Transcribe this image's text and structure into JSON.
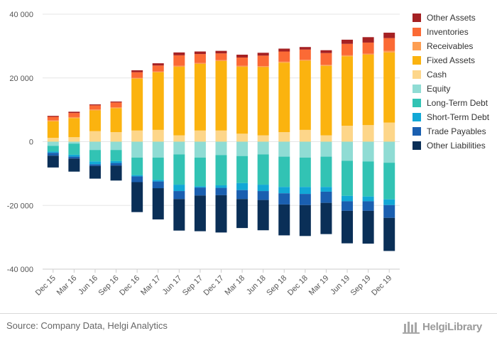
{
  "chart_data": {
    "type": "bar",
    "stacked": true,
    "categories": [
      "Dec 15",
      "Mar 16",
      "Jun 16",
      "Sep 16",
      "Dec 16",
      "Mar 17",
      "Jun 17",
      "Sep 17",
      "Dec 17",
      "Mar 18",
      "Jun 18",
      "Sep 18",
      "Dec 18",
      "Mar 19",
      "Jun 19",
      "Sep 19",
      "Dec 19"
    ],
    "ylim": [
      -40000,
      40000
    ],
    "yticks": [
      -40000,
      -20000,
      0,
      20000,
      40000
    ],
    "ytick_labels": [
      "-40 000",
      "-20 000",
      "0",
      "20 000",
      "40 000"
    ],
    "grid": true,
    "legend_position": "right",
    "assets": [
      {
        "name": "Cash",
        "color": "#fdd68a",
        "values": [
          1200,
          1400,
          3300,
          3000,
          3500,
          3700,
          2000,
          3500,
          3500,
          2500,
          2000,
          3000,
          3700,
          2000,
          5000,
          5200,
          6000
        ]
      },
      {
        "name": "Fixed Assets",
        "color": "#fbb30f",
        "values": [
          5200,
          6000,
          6500,
          7500,
          16300,
          18100,
          21500,
          20900,
          21800,
          21000,
          21400,
          21800,
          21700,
          21800,
          21800,
          22100,
          22000
        ]
      },
      {
        "name": "Receivables",
        "color": "#fd9e52",
        "values": [
          300,
          300,
          300,
          300,
          200,
          200,
          300,
          300,
          300,
          300,
          300,
          300,
          300,
          300,
          300,
          300,
          500
        ]
      },
      {
        "name": "Inventories",
        "color": "#fb6a35",
        "values": [
          1100,
          1300,
          1300,
          1500,
          1800,
          1900,
          3300,
          2800,
          2100,
          2600,
          3300,
          3200,
          3200,
          3700,
          3600,
          3500,
          4000
        ]
      },
      {
        "name": "Other Assets",
        "color": "#a52123",
        "values": [
          300,
          400,
          300,
          300,
          600,
          700,
          900,
          800,
          800,
          900,
          900,
          900,
          800,
          900,
          1300,
          1700,
          1700
        ]
      }
    ],
    "liabilities": [
      {
        "name": "Equity",
        "color": "#8fdcd4",
        "values": [
          -1300,
          -600,
          -2600,
          -2600,
          -5000,
          -5000,
          -4000,
          -5000,
          -4200,
          -4500,
          -4000,
          -4700,
          -5000,
          -4700,
          -6000,
          -6200,
          -6600
        ]
      },
      {
        "name": "Long-Term Debt",
        "color": "#32c3b4",
        "values": [
          -1800,
          -3500,
          -3600,
          -3500,
          -5500,
          -7000,
          -9500,
          -9000,
          -9500,
          -8500,
          -9500,
          -9500,
          -9200,
          -9500,
          -11000,
          -11000,
          -11500
        ]
      },
      {
        "name": "Short-Term Debt",
        "color": "#12a8d6",
        "values": [
          -400,
          -600,
          -900,
          -600,
          -400,
          -500,
          -2000,
          -400,
          -800,
          -2200,
          -2000,
          -2000,
          -2200,
          -1500,
          -1700,
          -1500,
          -1800
        ]
      },
      {
        "name": "Trade Payables",
        "color": "#1a5fb0",
        "values": [
          -900,
          -600,
          -500,
          -800,
          -1800,
          -2100,
          -2500,
          -2500,
          -2300,
          -2800,
          -2800,
          -3500,
          -3500,
          -3500,
          -3000,
          -3000,
          -4000
        ]
      },
      {
        "name": "Other Liabilities",
        "color": "#0a2f57",
        "values": [
          -3700,
          -4100,
          -4000,
          -4700,
          -9400,
          -9800,
          -9900,
          -11200,
          -11700,
          -9100,
          -9500,
          -9700,
          -9700,
          -9800,
          -10200,
          -10300,
          -10400
        ]
      }
    ],
    "legend": [
      {
        "name": "Other Assets",
        "color": "#a52123"
      },
      {
        "name": "Inventories",
        "color": "#fb6a35"
      },
      {
        "name": "Receivables",
        "color": "#fd9e52"
      },
      {
        "name": "Fixed Assets",
        "color": "#fbb30f"
      },
      {
        "name": "Cash",
        "color": "#fdd68a"
      },
      {
        "name": "Equity",
        "color": "#8fdcd4"
      },
      {
        "name": "Long-Term Debt",
        "color": "#32c3b4"
      },
      {
        "name": "Short-Term Debt",
        "color": "#12a8d6"
      },
      {
        "name": "Trade Payables",
        "color": "#1a5fb0"
      },
      {
        "name": "Other Liabilities",
        "color": "#0a2f57"
      }
    ]
  },
  "footer": {
    "source": "Source: Company Data, Helgi Analytics",
    "brand": "HelgiLibrary"
  }
}
